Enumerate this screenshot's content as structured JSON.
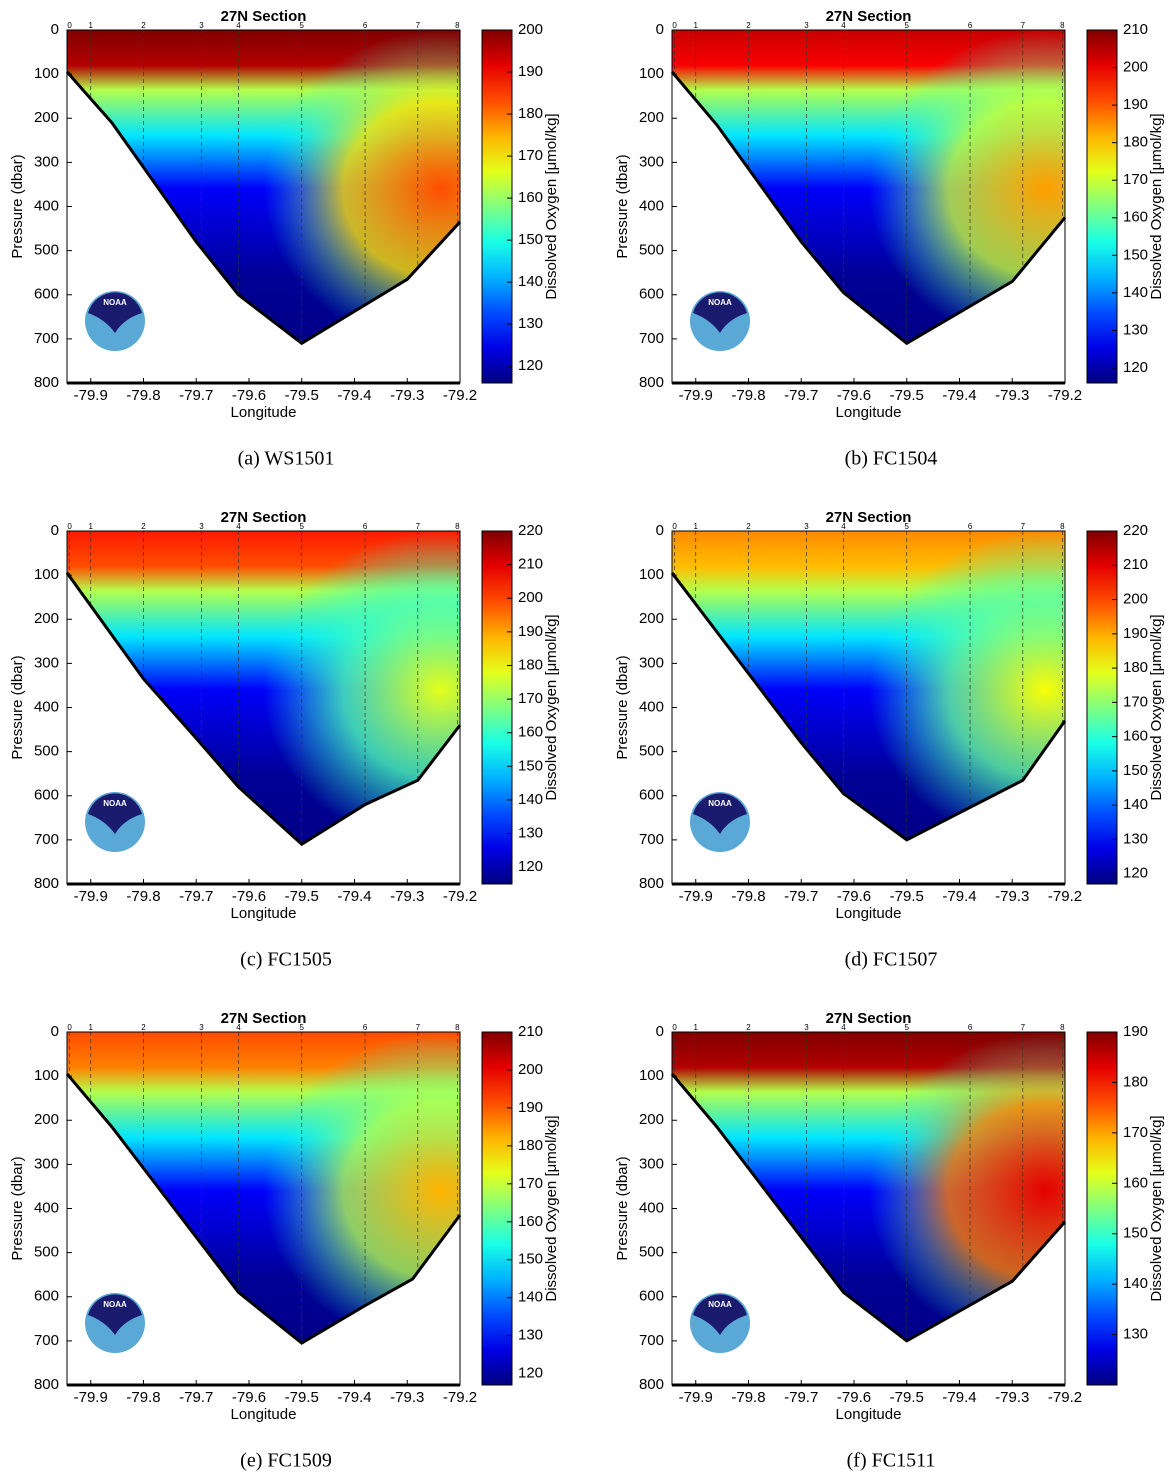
{
  "logo": "NOAA",
  "chart_data": [
    {
      "type": "contour",
      "title": "27N Section",
      "xlabel": "Longitude",
      "ylabel": "Pressure (dbar)",
      "colorbar_label": "Dissolved Oxygen [μmol/kg]",
      "colormap": "jet",
      "caption": "(a) WS1501",
      "xlim": [
        -79.945,
        -79.2
      ],
      "xticks": [
        -79.9,
        -79.8,
        -79.7,
        -79.6,
        -79.5,
        -79.4,
        -79.3,
        -79.2
      ],
      "ylim": [
        0,
        800
      ],
      "y_inverted": true,
      "yticks": [
        0,
        100,
        200,
        300,
        400,
        500,
        600,
        700,
        800
      ],
      "clim": [
        116,
        200
      ],
      "cticks": [
        120,
        130,
        140,
        150,
        160,
        170,
        180,
        190,
        200
      ],
      "stations": {
        "labels": [
          "0",
          "1",
          "2",
          "3",
          "4",
          "5",
          "6",
          "7",
          "8"
        ],
        "x": [
          -79.94,
          -79.9,
          -79.8,
          -79.69,
          -79.62,
          -79.5,
          -79.38,
          -79.28,
          -79.205
        ]
      },
      "bottom": {
        "x": [
          -79.945,
          -79.86,
          -79.7,
          -79.62,
          -79.5,
          -79.3,
          -79.2
        ],
        "y": [
          95,
          210,
          480,
          600,
          710,
          565,
          435
        ]
      }
    },
    {
      "type": "contour",
      "title": "27N Section",
      "xlabel": "Longitude",
      "ylabel": "Pressure (dbar)",
      "colorbar_label": "Dissolved Oxygen [μmol/kg]",
      "colormap": "jet",
      "caption": "(b) FC1504",
      "xlim": [
        -79.945,
        -79.2
      ],
      "xticks": [
        -79.9,
        -79.8,
        -79.7,
        -79.6,
        -79.5,
        -79.4,
        -79.3,
        -79.2
      ],
      "ylim": [
        0,
        800
      ],
      "y_inverted": true,
      "yticks": [
        0,
        100,
        200,
        300,
        400,
        500,
        600,
        700,
        800
      ],
      "clim": [
        116,
        210
      ],
      "cticks": [
        120,
        130,
        140,
        150,
        160,
        170,
        180,
        190,
        200,
        210
      ],
      "stations": {
        "labels": [
          "0",
          "1",
          "2",
          "3",
          "4",
          "5",
          "6",
          "7",
          "8"
        ],
        "x": [
          -79.94,
          -79.9,
          -79.8,
          -79.69,
          -79.62,
          -79.5,
          -79.38,
          -79.28,
          -79.205
        ]
      },
      "bottom": {
        "x": [
          -79.945,
          -79.86,
          -79.7,
          -79.62,
          -79.5,
          -79.3,
          -79.2
        ],
        "y": [
          95,
          215,
          480,
          595,
          710,
          570,
          425
        ]
      }
    },
    {
      "type": "contour",
      "title": "27N Section",
      "xlabel": "Longitude",
      "ylabel": "Pressure (dbar)",
      "colorbar_label": "Dissolved Oxygen [μmol/kg]",
      "colormap": "jet",
      "caption": "(c) FC1505",
      "xlim": [
        -79.945,
        -79.2
      ],
      "xticks": [
        -79.9,
        -79.8,
        -79.7,
        -79.6,
        -79.5,
        -79.4,
        -79.3,
        -79.2
      ],
      "ylim": [
        0,
        800
      ],
      "y_inverted": true,
      "yticks": [
        0,
        100,
        200,
        300,
        400,
        500,
        600,
        700,
        800
      ],
      "clim": [
        115,
        220
      ],
      "cticks": [
        120,
        130,
        140,
        150,
        160,
        170,
        180,
        190,
        200,
        210,
        220
      ],
      "stations": {
        "labels": [
          "0",
          "1",
          "2",
          "3",
          "4",
          "5",
          "6",
          "7",
          "8"
        ],
        "x": [
          -79.94,
          -79.9,
          -79.8,
          -79.69,
          -79.62,
          -79.5,
          -79.38,
          -79.28,
          -79.205
        ]
      },
      "bottom": {
        "x": [
          -79.945,
          -79.8,
          -79.7,
          -79.62,
          -79.5,
          -79.38,
          -79.28,
          -79.2
        ],
        "y": [
          95,
          335,
          470,
          580,
          710,
          620,
          565,
          440
        ]
      }
    },
    {
      "type": "contour",
      "title": "27N Section",
      "xlabel": "Longitude",
      "ylabel": "Pressure (dbar)",
      "colorbar_label": "Dissolved Oxygen [μmol/kg]",
      "colormap": "jet",
      "caption": "(d) FC1507",
      "xlim": [
        -79.945,
        -79.2
      ],
      "xticks": [
        -79.9,
        -79.8,
        -79.7,
        -79.6,
        -79.5,
        -79.4,
        -79.3,
        -79.2
      ],
      "ylim": [
        0,
        800
      ],
      "y_inverted": true,
      "yticks": [
        0,
        100,
        200,
        300,
        400,
        500,
        600,
        700,
        800
      ],
      "clim": [
        117,
        220
      ],
      "cticks": [
        120,
        130,
        140,
        150,
        160,
        170,
        180,
        190,
        200,
        210,
        220
      ],
      "stations": {
        "labels": [
          "0",
          "1",
          "2",
          "3",
          "4",
          "5",
          "6",
          "7",
          "8"
        ],
        "x": [
          -79.94,
          -79.9,
          -79.8,
          -79.69,
          -79.62,
          -79.5,
          -79.38,
          -79.28,
          -79.205
        ]
      },
      "bottom": {
        "x": [
          -79.945,
          -79.7,
          -79.62,
          -79.5,
          -79.28,
          -79.2
        ],
        "y": [
          95,
          480,
          595,
          700,
          565,
          430
        ]
      }
    },
    {
      "type": "contour",
      "title": "27N Section",
      "xlabel": "Longitude",
      "ylabel": "Pressure (dbar)",
      "colorbar_label": "Dissolved Oxygen [μmol/kg]",
      "colormap": "jet",
      "caption": "(e) FC1509",
      "xlim": [
        -79.945,
        -79.2
      ],
      "xticks": [
        -79.9,
        -79.8,
        -79.7,
        -79.6,
        -79.5,
        -79.4,
        -79.3,
        -79.2
      ],
      "ylim": [
        0,
        800
      ],
      "y_inverted": true,
      "yticks": [
        0,
        100,
        200,
        300,
        400,
        500,
        600,
        700,
        800
      ],
      "clim": [
        117,
        210
      ],
      "cticks": [
        120,
        130,
        140,
        150,
        160,
        170,
        180,
        190,
        200,
        210
      ],
      "stations": {
        "labels": [
          "0",
          "1",
          "2",
          "3",
          "4",
          "5",
          "6",
          "7",
          "8"
        ],
        "x": [
          -79.94,
          -79.9,
          -79.8,
          -79.69,
          -79.62,
          -79.5,
          -79.38,
          -79.28,
          -79.205
        ]
      },
      "bottom": {
        "x": [
          -79.945,
          -79.86,
          -79.62,
          -79.5,
          -79.38,
          -79.29,
          -79.2
        ],
        "y": [
          95,
          215,
          590,
          705,
          620,
          560,
          415
        ]
      }
    },
    {
      "type": "contour",
      "title": "27N Section",
      "xlabel": "Longitude",
      "ylabel": "Pressure (dbar)",
      "colorbar_label": "Dissolved Oxygen [μmol/kg]",
      "colormap": "jet",
      "caption": "(f) FC1511",
      "xlim": [
        -79.945,
        -79.2
      ],
      "xticks": [
        -79.9,
        -79.8,
        -79.7,
        -79.6,
        -79.5,
        -79.4,
        -79.3,
        -79.2
      ],
      "ylim": [
        0,
        800
      ],
      "y_inverted": true,
      "yticks": [
        0,
        100,
        200,
        300,
        400,
        500,
        600,
        700,
        800
      ],
      "clim": [
        120,
        190
      ],
      "cticks": [
        130,
        140,
        150,
        160,
        170,
        180,
        190
      ],
      "stations": {
        "labels": [
          "0",
          "1",
          "2",
          "3",
          "4",
          "5",
          "6",
          "7",
          "8"
        ],
        "x": [
          -79.94,
          -79.9,
          -79.8,
          -79.69,
          -79.62,
          -79.5,
          -79.38,
          -79.28,
          -79.205
        ]
      },
      "bottom": {
        "x": [
          -79.945,
          -79.86,
          -79.62,
          -79.5,
          -79.3,
          -79.2
        ],
        "y": [
          95,
          215,
          590,
          700,
          565,
          430
        ]
      }
    }
  ]
}
